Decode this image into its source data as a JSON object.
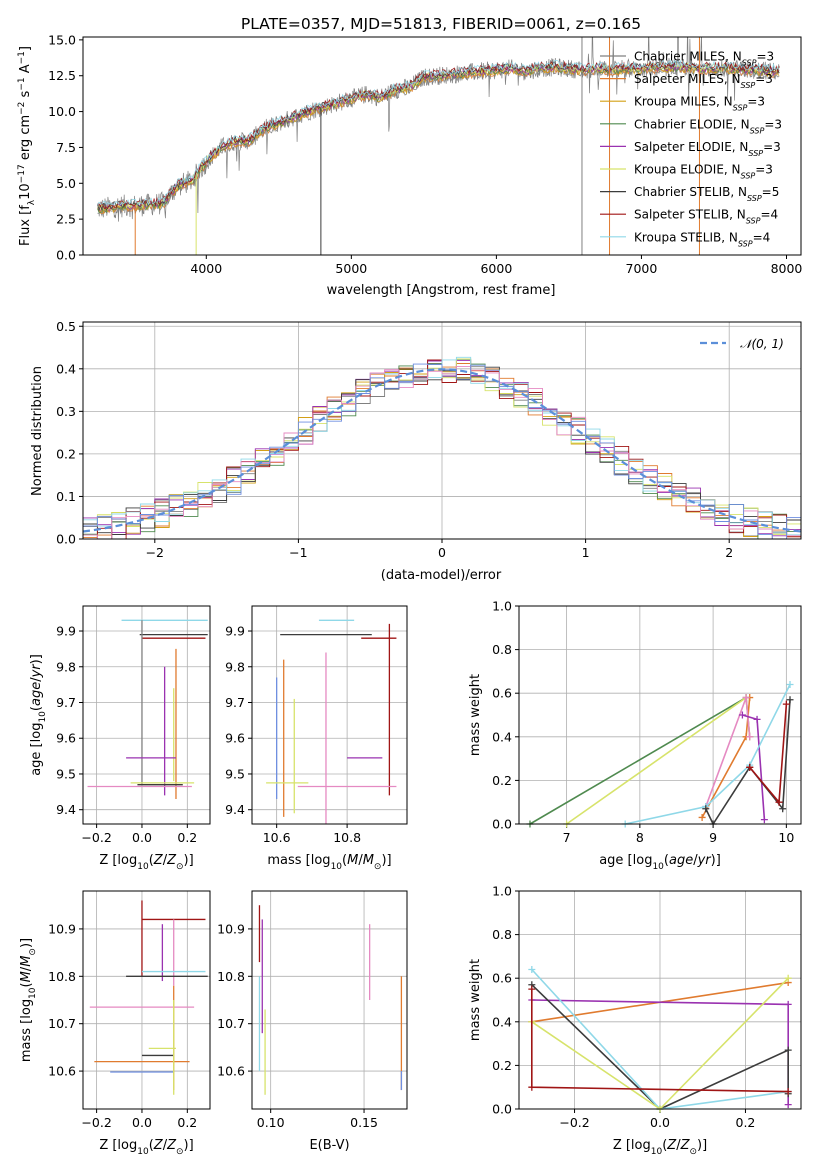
{
  "title": "PLATE=0357, MJD=51813, FIBERID=0061, z=0.165",
  "colors": {
    "chabrier_miles": "#808080",
    "salpeter_miles": "#e07b2f",
    "kroupa_miles": "#d4a017",
    "chabrier_elodie": "#4f8a4f",
    "salpeter_elodie": "#9a32b0",
    "kroupa_elodie": "#d7e36b",
    "chabrier_stelib": "#3c3c3c",
    "salpeter_stelib": "#a01515",
    "kroupa_stelib": "#8fd8e8",
    "normal_curve": "#5b8fd9",
    "pink": "#e58ac2",
    "blue": "#6f8fe0"
  },
  "chart_data": [
    {
      "id": "spectrum",
      "type": "line",
      "title": "PLATE=0357, MJD=51813, FIBERID=0061, z=0.165",
      "xlabel": "wavelength [Angstrom, rest frame]",
      "ylabel": "Flux [f_λ 10^-17 erg cm^-2 s^-1 A^-1]",
      "xlim": [
        3150,
        8100
      ],
      "ylim": [
        0,
        15.2
      ],
      "xticks": [
        4000,
        5000,
        6000,
        7000,
        8000
      ],
      "yticks": [
        "0.0",
        "2.5",
        "5.0",
        "7.5",
        "10.0",
        "12.5",
        "15.0"
      ],
      "legend_position": "top-right",
      "legend": [
        {
          "label": "Chabrier MILES, N_SSP=3",
          "color": "#808080"
        },
        {
          "label": "Salpeter MILES, N_SSP=3",
          "color": "#e07b2f"
        },
        {
          "label": "Kroupa MILES, N_SSP=3",
          "color": "#d4a017"
        },
        {
          "label": "Chabrier ELODIE, N_SSP=3",
          "color": "#4f8a4f"
        },
        {
          "label": "Salpeter ELODIE, N_SSP=3",
          "color": "#9a32b0"
        },
        {
          "label": "Kroupa ELODIE, N_SSP=3",
          "color": "#d7e36b"
        },
        {
          "label": "Chabrier STELIB, N_SSP=5",
          "color": "#3c3c3c"
        },
        {
          "label": "Salpeter STELIB, N_SSP=4",
          "color": "#a01515"
        },
        {
          "label": "Kroupa STELIB, N_SSP=4",
          "color": "#8fd8e8"
        }
      ],
      "continuum": [
        [
          3250,
          3.2
        ],
        [
          3400,
          3.4
        ],
        [
          3600,
          3.5
        ],
        [
          3700,
          3.6
        ],
        [
          3800,
          4.8
        ],
        [
          3900,
          5.2
        ],
        [
          4000,
          6.5
        ],
        [
          4100,
          7.5
        ],
        [
          4200,
          7.9
        ],
        [
          4300,
          8.0
        ],
        [
          4400,
          8.8
        ],
        [
          4500,
          9.2
        ],
        [
          4600,
          9.6
        ],
        [
          4700,
          10.0
        ],
        [
          4800,
          10.3
        ],
        [
          4900,
          10.6
        ],
        [
          5000,
          10.9
        ],
        [
          5100,
          11.2
        ],
        [
          5200,
          11.0
        ],
        [
          5300,
          11.5
        ],
        [
          5400,
          11.7
        ],
        [
          5500,
          12.4
        ],
        [
          5600,
          12.5
        ],
        [
          5700,
          12.6
        ],
        [
          5800,
          12.7
        ],
        [
          5900,
          12.8
        ],
        [
          6000,
          12.9
        ],
        [
          6100,
          13.0
        ],
        [
          6200,
          12.8
        ],
        [
          6300,
          13.0
        ],
        [
          6400,
          13.1
        ],
        [
          6500,
          13.0
        ],
        [
          6600,
          12.9
        ],
        [
          6700,
          13.0
        ],
        [
          6800,
          12.9
        ],
        [
          6900,
          13.0
        ],
        [
          7000,
          13.0
        ],
        [
          7100,
          13.1
        ],
        [
          7200,
          13.1
        ],
        [
          7300,
          13.1
        ],
        [
          7400,
          13.0
        ],
        [
          7500,
          13.0
        ],
        [
          7600,
          13.0
        ],
        [
          7700,
          12.9
        ],
        [
          7800,
          12.9
        ],
        [
          7900,
          12.8
        ]
      ]
    },
    {
      "id": "residuals",
      "type": "histogram",
      "xlabel": "(data-model)/error",
      "ylabel": "Normed distribution",
      "xlim": [
        -2.5,
        2.5
      ],
      "ylim": [
        0,
        0.51
      ],
      "xticks": [
        "−2",
        "−1",
        "0",
        "1",
        "2"
      ],
      "yticks": [
        "0.0",
        "0.1",
        "0.2",
        "0.3",
        "0.4",
        "0.5"
      ],
      "legend": [
        {
          "label": "𝒩(0, 1)",
          "color": "#5b8fd9",
          "style": "dashed"
        }
      ],
      "bin_width": 0.1
    },
    {
      "id": "age_vs_Z",
      "type": "errorbar",
      "xlabel": "Z [log10(Z/Z⊙)]",
      "ylabel": "age [log10(age/yr)]",
      "xlim": [
        -0.26,
        0.3
      ],
      "ylim": [
        9.36,
        9.97
      ],
      "xticks": [
        "−0.2",
        "0.0",
        "0.2"
      ],
      "yticks": [
        "9.4",
        "9.5",
        "9.6",
        "9.7",
        "9.8",
        "9.9"
      ],
      "points": [
        {
          "color": "#8fd8e8",
          "x": 0.1,
          "xerr": 0.19,
          "y": 9.93,
          "yerr": 0.0
        },
        {
          "color": "#3c3c3c",
          "x": 0.14,
          "xerr": 0.15,
          "y": 9.89,
          "yerr": 0.0
        },
        {
          "color": "#a01515",
          "x": 0.14,
          "xerr": 0.14,
          "y": 9.88,
          "yerr": 0.0
        },
        {
          "color": "#808080",
          "x": 0.0,
          "xerr": 0.0,
          "y": 9.7,
          "yerr": 0.23
        },
        {
          "color": "#e07b2f",
          "x": 0.15,
          "xerr": 0.0,
          "y": 9.64,
          "yerr": 0.21
        },
        {
          "color": "#9a32b0",
          "x": 0.1,
          "xerr": 0.0,
          "y": 9.62,
          "yerr": 0.18
        },
        {
          "color": "#d7e36b",
          "x": 0.14,
          "xerr": 0.0,
          "y": 9.61,
          "yerr": 0.13
        },
        {
          "color": "#9a32b0",
          "x": 0.04,
          "xerr": 0.11,
          "y": 9.545,
          "yerr": 0.0
        },
        {
          "color": "#d7e36b",
          "x": 0.09,
          "xerr": 0.14,
          "y": 9.475,
          "yerr": 0.0
        },
        {
          "color": "#3c3c3c",
          "x": 0.08,
          "xerr": 0.1,
          "y": 9.47,
          "yerr": 0.0
        },
        {
          "color": "#e58ac2",
          "x": -0.01,
          "xerr": 0.23,
          "y": 9.465,
          "yerr": 0.0
        }
      ]
    },
    {
      "id": "age_vs_mass",
      "type": "errorbar",
      "xlabel": "mass [log10(M/M⊙)]",
      "ylabel": "",
      "xlim": [
        10.53,
        10.97
      ],
      "ylim": [
        9.36,
        9.97
      ],
      "xticks": [
        "10.6",
        "10.8"
      ],
      "yticks": [
        "9.4",
        "9.5",
        "9.6",
        "9.7",
        "9.8",
        "9.9"
      ],
      "points": [
        {
          "color": "#8fd8e8",
          "x": 10.77,
          "xerr": 0.05,
          "y": 9.93,
          "yerr": 0.0
        },
        {
          "color": "#3c3c3c",
          "x": 10.74,
          "xerr": 0.13,
          "y": 9.89,
          "yerr": 0.0
        },
        {
          "color": "#a01515",
          "x": 10.89,
          "xerr": 0.05,
          "y": 9.88,
          "yerr": 0.0
        },
        {
          "color": "#e07b2f",
          "x": 10.62,
          "xerr": 0.0,
          "y": 9.6,
          "yerr": 0.22
        },
        {
          "color": "#6f8fe0",
          "x": 10.6,
          "xerr": 0.0,
          "y": 9.6,
          "yerr": 0.17
        },
        {
          "color": "#d7e36b",
          "x": 10.65,
          "xerr": 0.0,
          "y": 9.55,
          "yerr": 0.16
        },
        {
          "color": "#e58ac2",
          "x": 10.74,
          "xerr": 0.0,
          "y": 9.6,
          "yerr": 0.24
        },
        {
          "color": "#9a32b0",
          "x": 10.85,
          "xerr": 0.05,
          "y": 9.545,
          "yerr": 0.0
        },
        {
          "color": "#a01515",
          "x": 10.92,
          "xerr": 0.0,
          "y": 9.68,
          "yerr": 0.24
        },
        {
          "color": "#d7e36b",
          "x": 10.63,
          "xerr": 0.06,
          "y": 9.475,
          "yerr": 0.0
        },
        {
          "color": "#e58ac2",
          "x": 10.8,
          "xerr": 0.14,
          "y": 9.465,
          "yerr": 0.0
        }
      ]
    },
    {
      "id": "massweight_vs_age",
      "type": "line",
      "xlabel": "age [log10(age/yr)]",
      "ylabel": "mass weight",
      "xlim": [
        6.35,
        10.2
      ],
      "ylim": [
        0,
        1.0
      ],
      "xticks": [
        "7",
        "8",
        "9",
        "10"
      ],
      "yticks": [
        "0.0",
        "0.2",
        "0.4",
        "0.6",
        "0.8",
        "1.0"
      ],
      "series": [
        {
          "color": "#4f8a4f",
          "points": [
            [
              6.5,
              0.0
            ],
            [
              9.45,
              0.58
            ],
            [
              9.5,
              0.4
            ]
          ]
        },
        {
          "color": "#d7e36b",
          "points": [
            [
              7.0,
              0.0
            ],
            [
              9.45,
              0.58
            ],
            [
              9.5,
              0.4
            ]
          ]
        },
        {
          "color": "#e07b2f",
          "points": [
            [
              8.85,
              0.03
            ],
            [
              9.45,
              0.4
            ],
            [
              9.5,
              0.58
            ]
          ]
        },
        {
          "color": "#e58ac2",
          "points": [
            [
              8.9,
              0.08
            ],
            [
              9.45,
              0.58
            ],
            [
              9.5,
              0.4
            ]
          ]
        },
        {
          "color": "#9a32b0",
          "points": [
            [
              9.4,
              0.5
            ],
            [
              9.6,
              0.48
            ],
            [
              9.7,
              0.02
            ]
          ]
        },
        {
          "color": "#8fd8e8",
          "points": [
            [
              7.8,
              0.0
            ],
            [
              8.9,
              0.08
            ],
            [
              9.5,
              0.27
            ],
            [
              10.05,
              0.64
            ]
          ]
        },
        {
          "color": "#3c3c3c",
          "points": [
            [
              8.9,
              0.07
            ],
            [
              9.0,
              0.0
            ],
            [
              9.5,
              0.26
            ],
            [
              9.95,
              0.07
            ],
            [
              10.05,
              0.57
            ]
          ]
        },
        {
          "color": "#a01515",
          "points": [
            [
              9.5,
              0.26
            ],
            [
              9.9,
              0.1
            ],
            [
              10.0,
              0.55
            ]
          ]
        }
      ]
    },
    {
      "id": "mass_vs_Z",
      "type": "errorbar",
      "xlabel": "Z [log10(Z/Z⊙)]",
      "ylabel": "mass [log10(M/M⊙)]",
      "xlim": [
        -0.26,
        0.3
      ],
      "ylim": [
        10.52,
        10.98
      ],
      "xticks": [
        "−0.2",
        "0.0",
        "0.2"
      ],
      "yticks": [
        "10.6",
        "10.7",
        "10.8",
        "10.9"
      ],
      "points": [
        {
          "color": "#a01515",
          "x": 0.14,
          "xerr": 0.14,
          "y": 10.92,
          "yerr": 0.0
        },
        {
          "color": "#a01515",
          "x": 0.0,
          "xerr": 0.0,
          "y": 10.88,
          "yerr": 0.08
        },
        {
          "color": "#9a32b0",
          "x": 0.09,
          "xerr": 0.0,
          "y": 10.85,
          "yerr": 0.06
        },
        {
          "color": "#e58ac2",
          "x": 0.14,
          "xerr": 0.0,
          "y": 10.85,
          "yerr": 0.07
        },
        {
          "color": "#8fd8e8",
          "x": 0.14,
          "xerr": 0.14,
          "y": 10.81,
          "yerr": 0.0
        },
        {
          "color": "#3c3c3c",
          "x": 0.11,
          "xerr": 0.18,
          "y": 10.8,
          "yerr": 0.0
        },
        {
          "color": "#e58ac2",
          "x": 0.0,
          "xerr": 0.23,
          "y": 10.735,
          "yerr": 0.0
        },
        {
          "color": "#d7e36b",
          "x": 0.09,
          "xerr": 0.06,
          "y": 10.648,
          "yerr": 0.0
        },
        {
          "color": "#3c3c3c",
          "x": 0.07,
          "xerr": 0.07,
          "y": 10.633,
          "yerr": 0.0
        },
        {
          "color": "#e07b2f",
          "x": 0.0,
          "xerr": 0.21,
          "y": 10.62,
          "yerr": 0.0
        },
        {
          "color": "#6f8fe0",
          "x": 0.0,
          "xerr": 0.14,
          "y": 10.598,
          "yerr": 0.0
        },
        {
          "color": "#e07b2f",
          "x": 0.14,
          "xerr": 0.0,
          "y": 10.67,
          "yerr": 0.11
        },
        {
          "color": "#d7e36b",
          "x": 0.14,
          "xerr": 0.0,
          "y": 10.65,
          "yerr": 0.1
        }
      ]
    },
    {
      "id": "mass_vs_ebv",
      "type": "errorbar",
      "xlabel": "E(B-V)",
      "ylabel": "",
      "xlim": [
        0.09,
        0.173
      ],
      "ylim": [
        10.52,
        10.98
      ],
      "xticks": [
        "0.10",
        "0.15"
      ],
      "yticks": [
        "10.6",
        "10.7",
        "10.8",
        "10.9"
      ],
      "points": [
        {
          "color": "#a01515",
          "x": 0.094,
          "xerr": 0.0,
          "y": 10.89,
          "yerr": 0.06
        },
        {
          "color": "#9a32b0",
          "x": 0.0955,
          "xerr": 0.0,
          "y": 10.8,
          "yerr": 0.12
        },
        {
          "color": "#8fd8e8",
          "x": 0.094,
          "xerr": 0.0,
          "y": 10.7,
          "yerr": 0.1
        },
        {
          "color": "#d7e36b",
          "x": 0.097,
          "xerr": 0.0,
          "y": 10.64,
          "yerr": 0.09
        },
        {
          "color": "#e58ac2",
          "x": 0.153,
          "xerr": 0.0,
          "y": 10.83,
          "yerr": 0.08
        },
        {
          "color": "#e07b2f",
          "x": 0.17,
          "xerr": 0.0,
          "y": 10.68,
          "yerr": 0.12
        },
        {
          "color": "#6f8fe0",
          "x": 0.17,
          "xerr": 0.0,
          "y": 10.58,
          "yerr": 0.02
        }
      ]
    },
    {
      "id": "massweight_vs_Z",
      "type": "line",
      "xlabel": "Z [log10(Z/Z⊙)]",
      "ylabel": "mass weight",
      "xlim": [
        -0.33,
        0.33
      ],
      "ylim": [
        0,
        1.0
      ],
      "xticks": [
        "−0.2",
        "0.0",
        "0.2"
      ],
      "yticks": [
        "0.0",
        "0.2",
        "0.4",
        "0.6",
        "0.8",
        "1.0"
      ],
      "series": [
        {
          "color": "#e07b2f",
          "points": [
            [
              -0.3,
              0.4
            ],
            [
              0.3,
              0.58
            ]
          ]
        },
        {
          "color": "#9a32b0",
          "points": [
            [
              -0.3,
              0.5
            ],
            [
              0.3,
              0.48
            ],
            [
              0.3,
              0.02
            ]
          ]
        },
        {
          "color": "#3c3c3c",
          "points": [
            [
              -0.3,
              0.57
            ],
            [
              0.0,
              0.0
            ],
            [
              0.3,
              0.27
            ],
            [
              0.3,
              0.07
            ]
          ]
        },
        {
          "color": "#8fd8e8",
          "points": [
            [
              -0.3,
              0.64
            ],
            [
              0.0,
              0.0
            ],
            [
              0.3,
              0.08
            ]
          ]
        },
        {
          "color": "#d7e36b",
          "points": [
            [
              -0.3,
              0.4
            ],
            [
              0.0,
              0.0
            ],
            [
              0.3,
              0.6
            ]
          ]
        },
        {
          "color": "#a01515",
          "points": [
            [
              -0.3,
              0.55
            ],
            [
              -0.3,
              0.1
            ],
            [
              0.3,
              0.08
            ]
          ]
        }
      ]
    }
  ]
}
